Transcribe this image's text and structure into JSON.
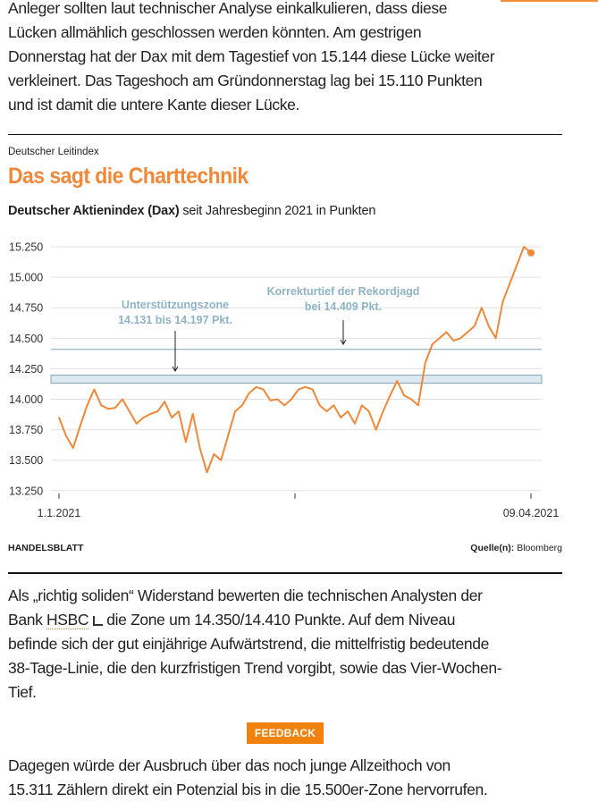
{
  "article": {
    "intro_lines": [
      "Anleger sollten laut technischer Analyse einkalkulieren, dass diese",
      "Lücken allmählich geschlossen werden könnten. Am gestrigen",
      "Donnerstag hat der Dax mit dem Tagestief von 15.144 diese Lücke weiter",
      "verkleinert. Das Tageshoch am Gründonnerstag lag bei 15.110 Punkten",
      "und ist damit die untere Kante dieser Lücke."
    ],
    "para2": {
      "line1": "Als „richtig soliden“ Widerstand bewerten die technischen Analysten der",
      "line2_pre": "Bank ",
      "line2_link": "HSBC",
      "line2_post": " die Zone um 14.350/14.410 Punkte. Auf dem Niveau",
      "line3": "befinde sich der gut einjährige Aufwärtstrend, die mittelfristig bedeutende",
      "line4": "38-Tage-Linie, die den kurzfristigen Trend vorgibt, sowie das Vier-Wochen-",
      "line5": "Tief."
    },
    "para3": {
      "line1": "Dagegen würde der Ausbruch über das noch junge Allzeithoch von",
      "line2": "15.311 Zählern direkt ein Potenzial bis in die 15.500er-Zone hervorrufen."
    },
    "stock_icon": "chart-icon"
  },
  "feedback_label": "FEEDBACK",
  "chart_header": {
    "kicker": "Deutscher Leitindex",
    "title": "Das sagt die Charttechnik",
    "subtitle_bold": "Deutscher Aktienindex (Dax)",
    "subtitle_rest": " seit Jahresbeginn 2021 in Punkten"
  },
  "chart_footer": {
    "brand": "HANDELSBLATT",
    "source_label": "Quelle(n):",
    "source": " Bloomberg"
  },
  "colors": {
    "line": "#f0883a",
    "title": "#f0883a",
    "annotation": "#8fb3c6",
    "band": "#dce9ef",
    "band_line": "#7ea6b8"
  },
  "chart_data": {
    "type": "line",
    "title": "Das sagt die Charttechnik",
    "ylabel": "",
    "xlabel": "",
    "ylim": [
      13250,
      15300
    ],
    "yticks": [
      13250,
      13500,
      13750,
      14000,
      14250,
      14500,
      14750,
      15000,
      15250
    ],
    "ytick_labels": [
      "13.250",
      "13.500",
      "13.750",
      "14.000",
      "14.250",
      "14.500",
      "14.750",
      "15.000",
      "15.250"
    ],
    "xtick_labels": [
      "1.1.2021",
      "",
      "09.04.2021"
    ],
    "grid": true,
    "x": [
      "2021-01-04",
      "2021-01-05",
      "2021-01-06",
      "2021-01-07",
      "2021-01-08",
      "2021-01-11",
      "2021-01-12",
      "2021-01-13",
      "2021-01-14",
      "2021-01-15",
      "2021-01-18",
      "2021-01-19",
      "2021-01-20",
      "2021-01-21",
      "2021-01-22",
      "2021-01-25",
      "2021-01-26",
      "2021-01-27",
      "2021-01-28",
      "2021-01-29",
      "2021-02-01",
      "2021-02-02",
      "2021-02-03",
      "2021-02-04",
      "2021-02-05",
      "2021-02-08",
      "2021-02-09",
      "2021-02-10",
      "2021-02-11",
      "2021-02-12",
      "2021-02-15",
      "2021-02-16",
      "2021-02-17",
      "2021-02-18",
      "2021-02-19",
      "2021-02-22",
      "2021-02-23",
      "2021-02-24",
      "2021-02-25",
      "2021-02-26",
      "2021-03-01",
      "2021-03-02",
      "2021-03-03",
      "2021-03-04",
      "2021-03-05",
      "2021-03-08",
      "2021-03-09",
      "2021-03-10",
      "2021-03-11",
      "2021-03-12",
      "2021-03-15",
      "2021-03-16",
      "2021-03-17",
      "2021-03-18",
      "2021-03-19",
      "2021-03-22",
      "2021-03-23",
      "2021-03-24",
      "2021-03-25",
      "2021-03-26",
      "2021-03-29",
      "2021-03-30",
      "2021-03-31",
      "2021-04-01",
      "2021-04-06",
      "2021-04-07",
      "2021-04-08",
      "2021-04-09"
    ],
    "values": [
      13850,
      13700,
      13600,
      13780,
      13950,
      14080,
      13950,
      13920,
      13930,
      14000,
      13900,
      13800,
      13850,
      13880,
      13900,
      13980,
      13850,
      13900,
      13650,
      13880,
      13600,
      13400,
      13550,
      13500,
      13700,
      13900,
      13950,
      14050,
      14100,
      14080,
      13990,
      14000,
      13950,
      14000,
      14080,
      14100,
      14080,
      13950,
      13900,
      13950,
      13850,
      13900,
      13800,
      13950,
      13900,
      13750,
      13900,
      14030,
      14150,
      14030,
      14000,
      13950,
      14300,
      14450,
      14500,
      14550,
      14480,
      14500,
      14550,
      14600,
      14750,
      14600,
      14500,
      14800,
      14950,
      15100,
      15250,
      15200
    ],
    "support_zone": {
      "low": 14131,
      "high": 14197,
      "label_line1": "Unterstützungszone",
      "label_line2": "14.131 bis 14.197 Pkt."
    },
    "correction_low": {
      "value": 14409,
      "label_line1": "Korrekturtief der Rekordjagd",
      "label_line2": "bei 14.409 Pkt."
    }
  }
}
